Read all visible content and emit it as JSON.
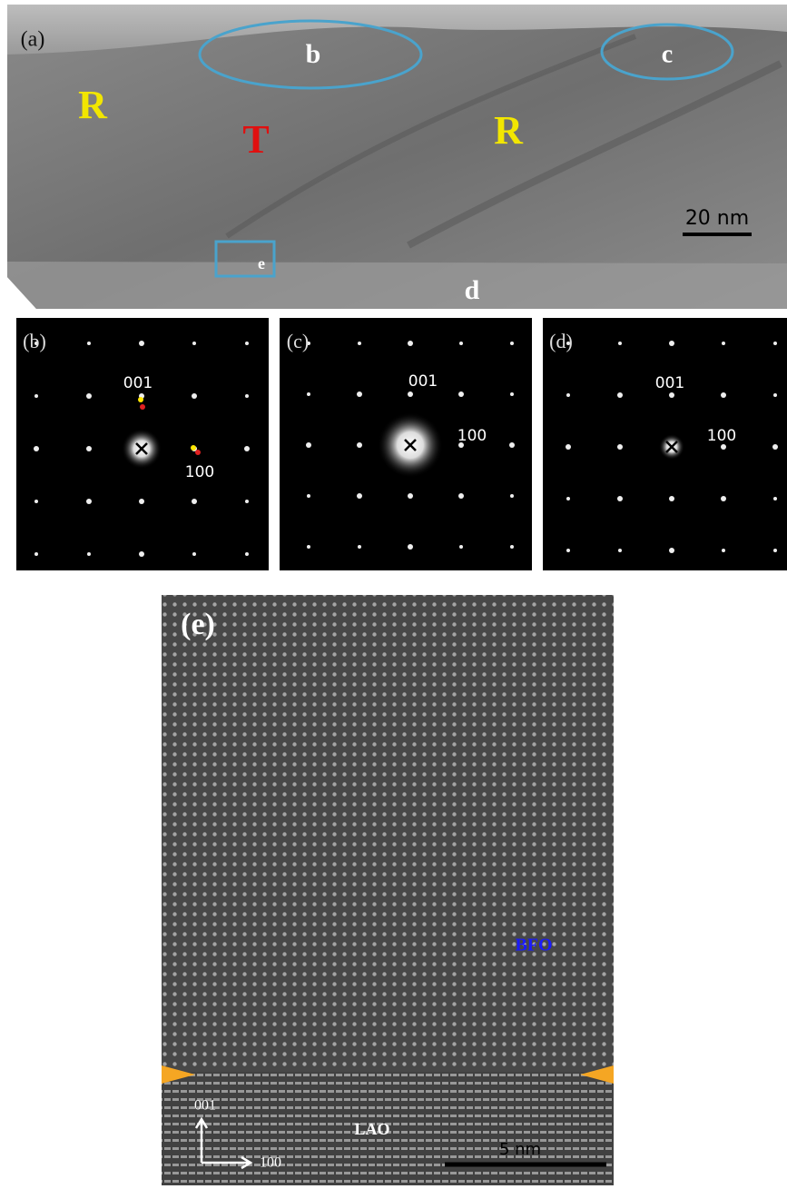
{
  "panel_a": {
    "label": "(a)",
    "ellipse_labels": [
      "b",
      "c"
    ],
    "phase_labels": [
      "R",
      "T",
      "R"
    ],
    "box_label": "e",
    "bottom_label": "d",
    "scale_bar": "20 nm"
  },
  "diffraction": [
    {
      "label": "(b)",
      "labels": [
        "001",
        "100"
      ]
    },
    {
      "label": "(c)",
      "labels": [
        "001",
        "100"
      ]
    },
    {
      "label": "(d)",
      "labels": [
        "001",
        "100"
      ]
    }
  ],
  "panel_e": {
    "label": "(e)",
    "film": "BFO",
    "substrate": "LAO",
    "scale_bar": "5 nm",
    "axes": [
      "001",
      "100"
    ]
  }
}
